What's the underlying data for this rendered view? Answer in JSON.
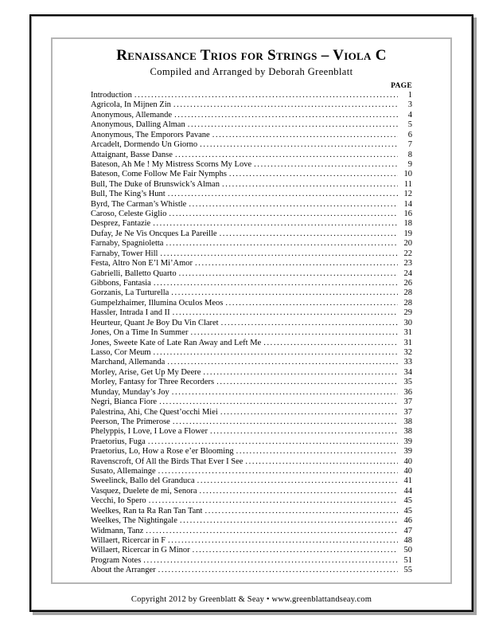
{
  "header": {
    "title": "Renaissance Trios for Strings – Viola C",
    "subtitle": "Compiled and Arranged by Deborah Greenblatt",
    "page_column_label": "PAGE"
  },
  "toc": {
    "entries": [
      {
        "title": "Introduction",
        "page": "1"
      },
      {
        "title": "Agricola, In Mijnen Zin",
        "page": "3"
      },
      {
        "title": "Anonymous, Allemande",
        "page": "4"
      },
      {
        "title": "Anonymous, Dalling Alman",
        "page": "5"
      },
      {
        "title": "Anonymous, The Emporors Pavane",
        "page": "6"
      },
      {
        "title": "Arcadelt, Dormendo Un Giorno",
        "page": "7"
      },
      {
        "title": "Attaignant, Basse Danse",
        "page": "8"
      },
      {
        "title": "Bateson, Ah Me ! My Mistress Scorns My Love",
        "page": "9"
      },
      {
        "title": "Bateson, Come Follow Me Fair Nymphs",
        "page": "10"
      },
      {
        "title": "Bull, The Duke of Brunswick’s Alman",
        "page": "11"
      },
      {
        "title": "Bull, The King’s Hunt",
        "page": "12"
      },
      {
        "title": "Byrd, The Carman’s Whistle",
        "page": "14"
      },
      {
        "title": "Caroso, Celeste Giglio",
        "page": "16"
      },
      {
        "title": "Desprez, Fantazie",
        "page": "18"
      },
      {
        "title": "Dufay, Je Ne Vis Oncques La Pareille",
        "page": "19"
      },
      {
        "title": "Farnaby, Spagnioletta",
        "page": "20"
      },
      {
        "title": "Farnaby, Tower Hill",
        "page": "22"
      },
      {
        "title": "Festa, Altro Non E’l Mi’Amor",
        "page": "23"
      },
      {
        "title": "Gabrielli, Balletto Quarto",
        "page": "24"
      },
      {
        "title": "Gibbons, Fantasia",
        "page": "26"
      },
      {
        "title": "Gorzanis, La Turturella",
        "page": "28"
      },
      {
        "title": "Gumpelzhaimer, Illumina Oculos Meos",
        "page": "28"
      },
      {
        "title": "Hassler, Intrada I and II",
        "page": "29"
      },
      {
        "title": "Heurteur, Quant Je Boy Du Vin Claret",
        "page": "30"
      },
      {
        "title": "Jones, On a Time In Summer",
        "page": "31"
      },
      {
        "title": "Jones, Sweete Kate of Late Ran Away and Left Me",
        "page": "31"
      },
      {
        "title": "Lasso, Cor Meum",
        "page": "32"
      },
      {
        "title": "Marchand, Allemanda",
        "page": "33"
      },
      {
        "title": "Morley, Arise, Get Up My Deere",
        "page": "34"
      },
      {
        "title": "Morley, Fantasy for Three Recorders",
        "page": "35"
      },
      {
        "title": "Munday, Munday’s Joy",
        "page": "36"
      },
      {
        "title": "Negri, Bianca Fiore",
        "page": "37"
      },
      {
        "title": "Palestrina, Ahi, Che Quest’occhi Miei",
        "page": "37"
      },
      {
        "title": "Peerson, The Primerose",
        "page": "38"
      },
      {
        "title": "Phelyppis, I Love, I Love a Flower",
        "page": "38"
      },
      {
        "title": "Praetorius, Fuga",
        "page": "39"
      },
      {
        "title": "Praetorius, Lo, How a Rose e’er Blooming",
        "page": "39"
      },
      {
        "title": "Ravenscroft, Of All the Birds That Ever I See",
        "page": "40"
      },
      {
        "title": "Susato, Allemainge",
        "page": "40"
      },
      {
        "title": "Sweelinck, Ballo del Granduca",
        "page": "41"
      },
      {
        "title": "Vasquez, Duelete de mi, Senora",
        "page": "44"
      },
      {
        "title": "Vecchi, Io Spero",
        "page": "45"
      },
      {
        "title": "Weelkes, Ran ta Ra Ran Tan Tant",
        "page": "45"
      },
      {
        "title": "Weelkes, The Nightingale",
        "page": "46"
      },
      {
        "title": "Widmann, Tanz",
        "page": "47"
      },
      {
        "title": "Willaert, Ricercar in F",
        "page": "48"
      },
      {
        "title": "Willaert, Ricercar in G Minor",
        "page": "50"
      },
      {
        "title": "Program Notes",
        "page": "51"
      },
      {
        "title": "About the Arranger",
        "page": "55"
      }
    ]
  },
  "footer": {
    "text": "Copyright 2012 by Greenblatt & Seay • www.greenblattandseay.com"
  },
  "colors": {
    "frame_black": "#000000",
    "frame_inner_gray": "#8f8f8f",
    "content_box_gray": "#b5b5b5",
    "shadow_gray": "#a3a3a3",
    "text": "#000000"
  }
}
